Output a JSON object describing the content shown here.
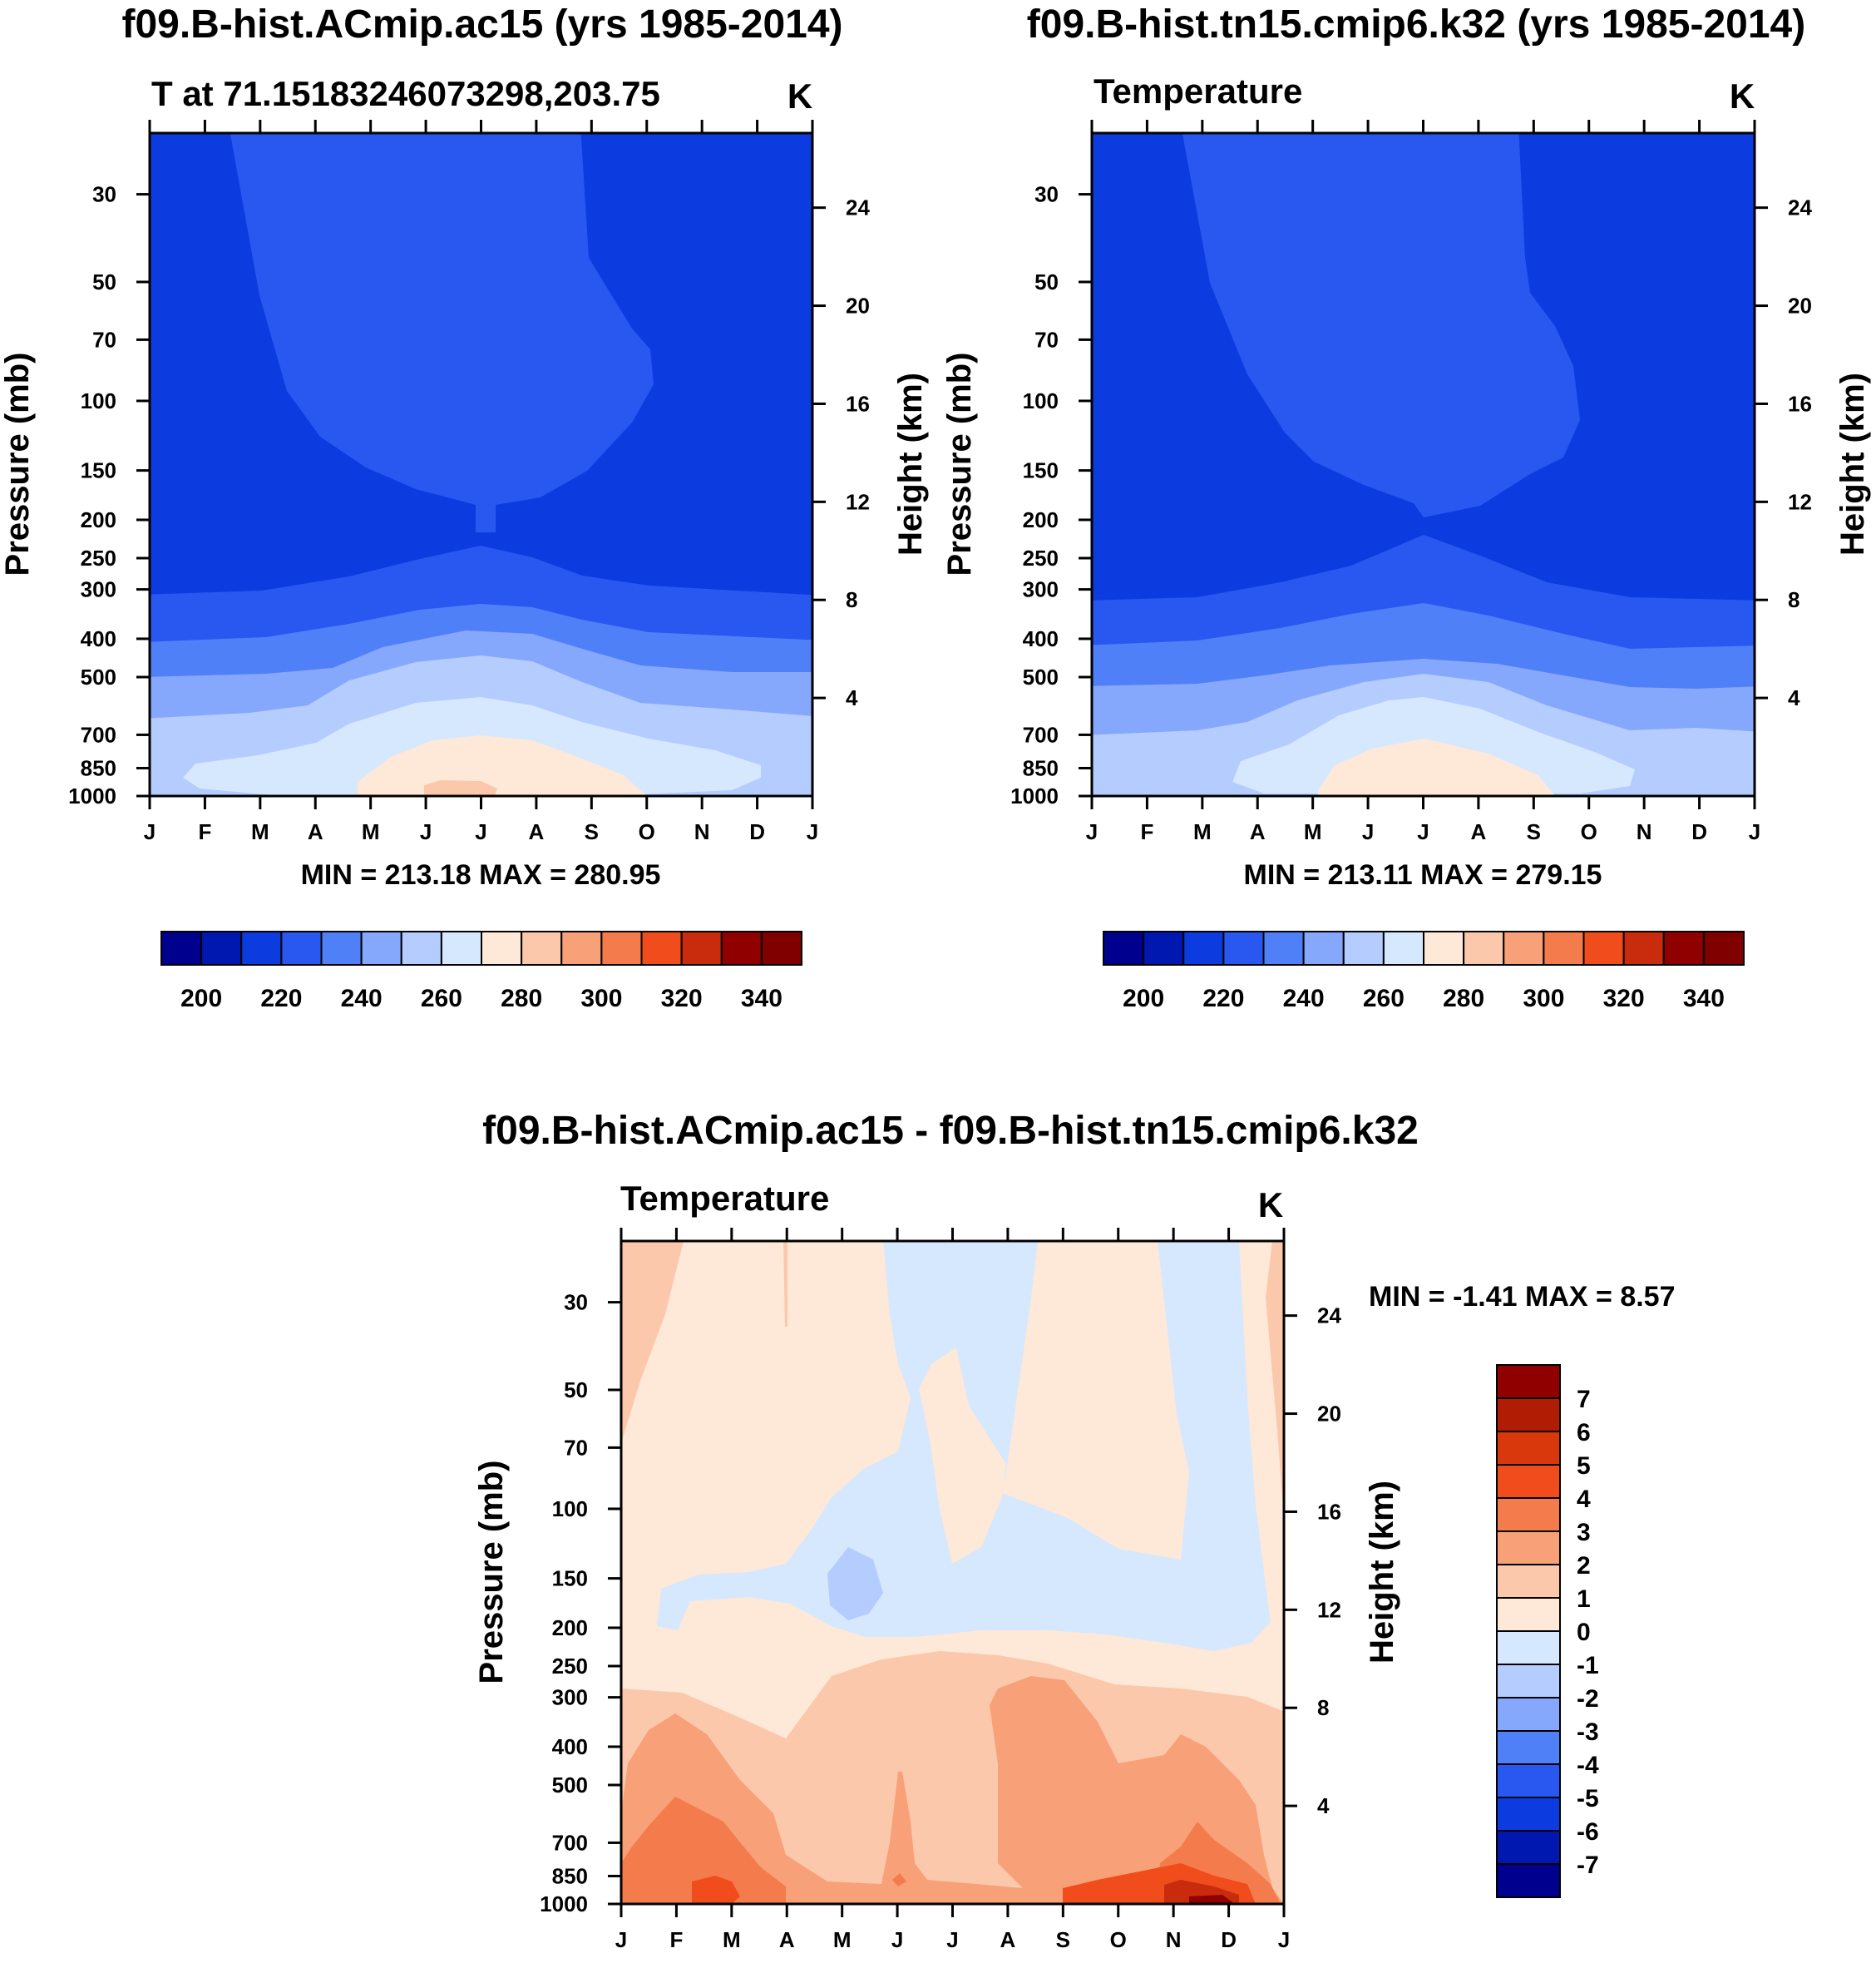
{
  "chart_data": [
    {
      "type": "contour",
      "title": "f09.B-hist.ACmip.ac15 (yrs 1985-2014)",
      "subtitle": "T at 71.15183246073298,203.75",
      "units": "K",
      "xlabel": "",
      "ylabel": "Pressure (mb)",
      "ylabel_right": "Height (km)",
      "x_ticks": [
        "J",
        "F",
        "M",
        "A",
        "M",
        "J",
        "J",
        "A",
        "S",
        "O",
        "N",
        "D",
        "J"
      ],
      "p_ticks": [
        30,
        50,
        70,
        100,
        150,
        200,
        250,
        300,
        400,
        500,
        700,
        850,
        1000
      ],
      "z_ticks": [
        24,
        20,
        16,
        12,
        8,
        4
      ],
      "ylim": [
        1000,
        21
      ],
      "min_max_text": "MIN = 213.18 MAX = 280.95",
      "min": 213.18,
      "max": 280.95,
      "levels": [
        200,
        210,
        220,
        230,
        240,
        250,
        260,
        270,
        280,
        290,
        300,
        310,
        320,
        330,
        340
      ],
      "colorbar_labels": [
        "200",
        "220",
        "240",
        "260",
        "280",
        "300",
        "320",
        "340"
      ],
      "colorbar_orientation": "horizontal"
    },
    {
      "type": "contour",
      "title": "f09.B-hist.tn15.cmip6.k32 (yrs 1985-2014)",
      "subtitle": "Temperature",
      "units": "K",
      "xlabel": "",
      "ylabel": "Pressure (mb)",
      "ylabel_right": "Height (km)",
      "x_ticks": [
        "J",
        "F",
        "M",
        "A",
        "M",
        "J",
        "J",
        "A",
        "S",
        "O",
        "N",
        "D",
        "J"
      ],
      "p_ticks": [
        30,
        50,
        70,
        100,
        150,
        200,
        250,
        300,
        400,
        500,
        700,
        850,
        1000
      ],
      "z_ticks": [
        24,
        20,
        16,
        12,
        8,
        4
      ],
      "ylim": [
        1000,
        21
      ],
      "min_max_text": "MIN = 213.11 MAX = 279.15",
      "min": 213.11,
      "max": 279.15,
      "levels": [
        200,
        210,
        220,
        230,
        240,
        250,
        260,
        270,
        280,
        290,
        300,
        310,
        320,
        330,
        340
      ],
      "colorbar_labels": [
        "200",
        "220",
        "240",
        "260",
        "280",
        "300",
        "320",
        "340"
      ],
      "colorbar_orientation": "horizontal"
    },
    {
      "type": "contour",
      "title": "f09.B-hist.ACmip.ac15 - f09.B-hist.tn15.cmip6.k32",
      "subtitle": "Temperature",
      "units": "K",
      "xlabel": "",
      "ylabel": "Pressure (mb)",
      "ylabel_right": "Height (km)",
      "x_ticks": [
        "J",
        "F",
        "M",
        "A",
        "M",
        "J",
        "J",
        "A",
        "S",
        "O",
        "N",
        "D",
        "J"
      ],
      "p_ticks": [
        30,
        50,
        70,
        100,
        150,
        200,
        250,
        300,
        400,
        500,
        700,
        850,
        1000
      ],
      "z_ticks": [
        24,
        20,
        16,
        12,
        8,
        4
      ],
      "ylim": [
        1000,
        21
      ],
      "min_max_text": "MIN =  -1.41 MAX =   8.57",
      "min": -1.41,
      "max": 8.57,
      "levels": [
        -7,
        -6,
        -5,
        -4,
        -3,
        -2,
        -1,
        0,
        1,
        2,
        3,
        4,
        5,
        6,
        7
      ],
      "colorbar_labels": [
        "7",
        "6",
        "5",
        "4",
        "3",
        "2",
        "1",
        "0",
        "-1",
        "-2",
        "-3",
        "-4",
        "-5",
        "-6",
        "-7"
      ],
      "colorbar_orientation": "vertical"
    }
  ],
  "colors": {
    "abs_scale": [
      "#00008f",
      "#0018b0",
      "#0c3ce0",
      "#2858f0",
      "#5080f8",
      "#86a8fc",
      "#b4ccfe",
      "#d6e8fe",
      "#fee8d8",
      "#fcc8ac",
      "#f8a078",
      "#f47c4c",
      "#f04c1c",
      "#c82c0c",
      "#900000",
      "#800000"
    ],
    "diff_scale": [
      "#00008f",
      "#0018b0",
      "#0c3ce0",
      "#2858f0",
      "#5080f8",
      "#86a8fc",
      "#b4ccfe",
      "#d6e8fe",
      "#fee8d8",
      "#fcc8ac",
      "#f8a078",
      "#f47c4c",
      "#f04c1c",
      "#d8380c",
      "#b01c04",
      "#900000"
    ]
  }
}
